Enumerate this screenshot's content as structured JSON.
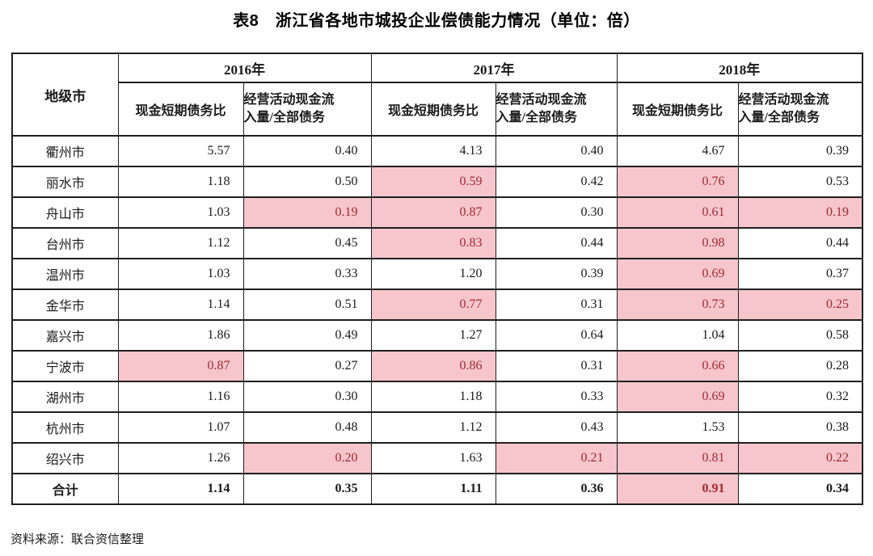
{
  "page": {
    "title": "表8　浙江省各地市城投企业偿债能力情况（单位：倍）",
    "source_note": "资料来源：联合资信整理"
  },
  "colors": {
    "highlight_bg": "#f6c6cc",
    "highlight_text": "#a52832",
    "border": "#1f1f1f",
    "text": "#1a1a1a"
  },
  "table": {
    "corner_header": "地级市",
    "year_groups": [
      {
        "year": "2016年",
        "metrics": [
          "现金短期债务比",
          "经营活动现金流\n入量/全部债务"
        ]
      },
      {
        "year": "2017年",
        "metrics": [
          "现金短期债务比",
          "经营活动现金流\n入量/全部债务"
        ]
      },
      {
        "year": "2018年",
        "metrics": [
          "现金短期债务比",
          "经营活动现金流\n入量/全部债务"
        ]
      }
    ],
    "rows": [
      {
        "city": "衢州市",
        "values": [
          "5.57",
          "0.40",
          "4.13",
          "0.40",
          "4.67",
          "0.39"
        ],
        "highlight": [
          false,
          false,
          false,
          false,
          false,
          false
        ]
      },
      {
        "city": "丽水市",
        "values": [
          "1.18",
          "0.50",
          "0.59",
          "0.42",
          "0.76",
          "0.53"
        ],
        "highlight": [
          false,
          false,
          true,
          false,
          true,
          false
        ]
      },
      {
        "city": "舟山市",
        "values": [
          "1.03",
          "0.19",
          "0.87",
          "0.30",
          "0.61",
          "0.19"
        ],
        "highlight": [
          false,
          true,
          true,
          false,
          true,
          true
        ]
      },
      {
        "city": "台州市",
        "values": [
          "1.12",
          "0.45",
          "0.83",
          "0.44",
          "0.98",
          "0.44"
        ],
        "highlight": [
          false,
          false,
          true,
          false,
          true,
          false
        ]
      },
      {
        "city": "温州市",
        "values": [
          "1.03",
          "0.33",
          "1.20",
          "0.39",
          "0.69",
          "0.37"
        ],
        "highlight": [
          false,
          false,
          false,
          false,
          true,
          false
        ]
      },
      {
        "city": "金华市",
        "values": [
          "1.14",
          "0.51",
          "0.77",
          "0.31",
          "0.73",
          "0.25"
        ],
        "highlight": [
          false,
          false,
          true,
          false,
          true,
          true
        ]
      },
      {
        "city": "嘉兴市",
        "values": [
          "1.86",
          "0.49",
          "1.27",
          "0.64",
          "1.04",
          "0.58"
        ],
        "highlight": [
          false,
          false,
          false,
          false,
          false,
          false
        ]
      },
      {
        "city": "宁波市",
        "values": [
          "0.87",
          "0.27",
          "0.86",
          "0.31",
          "0.66",
          "0.28"
        ],
        "highlight": [
          true,
          false,
          true,
          false,
          true,
          false
        ]
      },
      {
        "city": "湖州市",
        "values": [
          "1.16",
          "0.30",
          "1.18",
          "0.33",
          "0.69",
          "0.32"
        ],
        "highlight": [
          false,
          false,
          false,
          false,
          true,
          false
        ]
      },
      {
        "city": "杭州市",
        "values": [
          "1.07",
          "0.48",
          "1.12",
          "0.43",
          "1.53",
          "0.38"
        ],
        "highlight": [
          false,
          false,
          false,
          false,
          false,
          false
        ]
      },
      {
        "city": "绍兴市",
        "values": [
          "1.26",
          "0.20",
          "1.63",
          "0.21",
          "0.81",
          "0.22"
        ],
        "highlight": [
          false,
          true,
          false,
          true,
          true,
          true
        ]
      }
    ],
    "total_row": {
      "city": "合计",
      "values": [
        "1.14",
        "0.35",
        "1.11",
        "0.36",
        "0.91",
        "0.34"
      ],
      "highlight": [
        false,
        false,
        false,
        false,
        true,
        false
      ]
    }
  }
}
